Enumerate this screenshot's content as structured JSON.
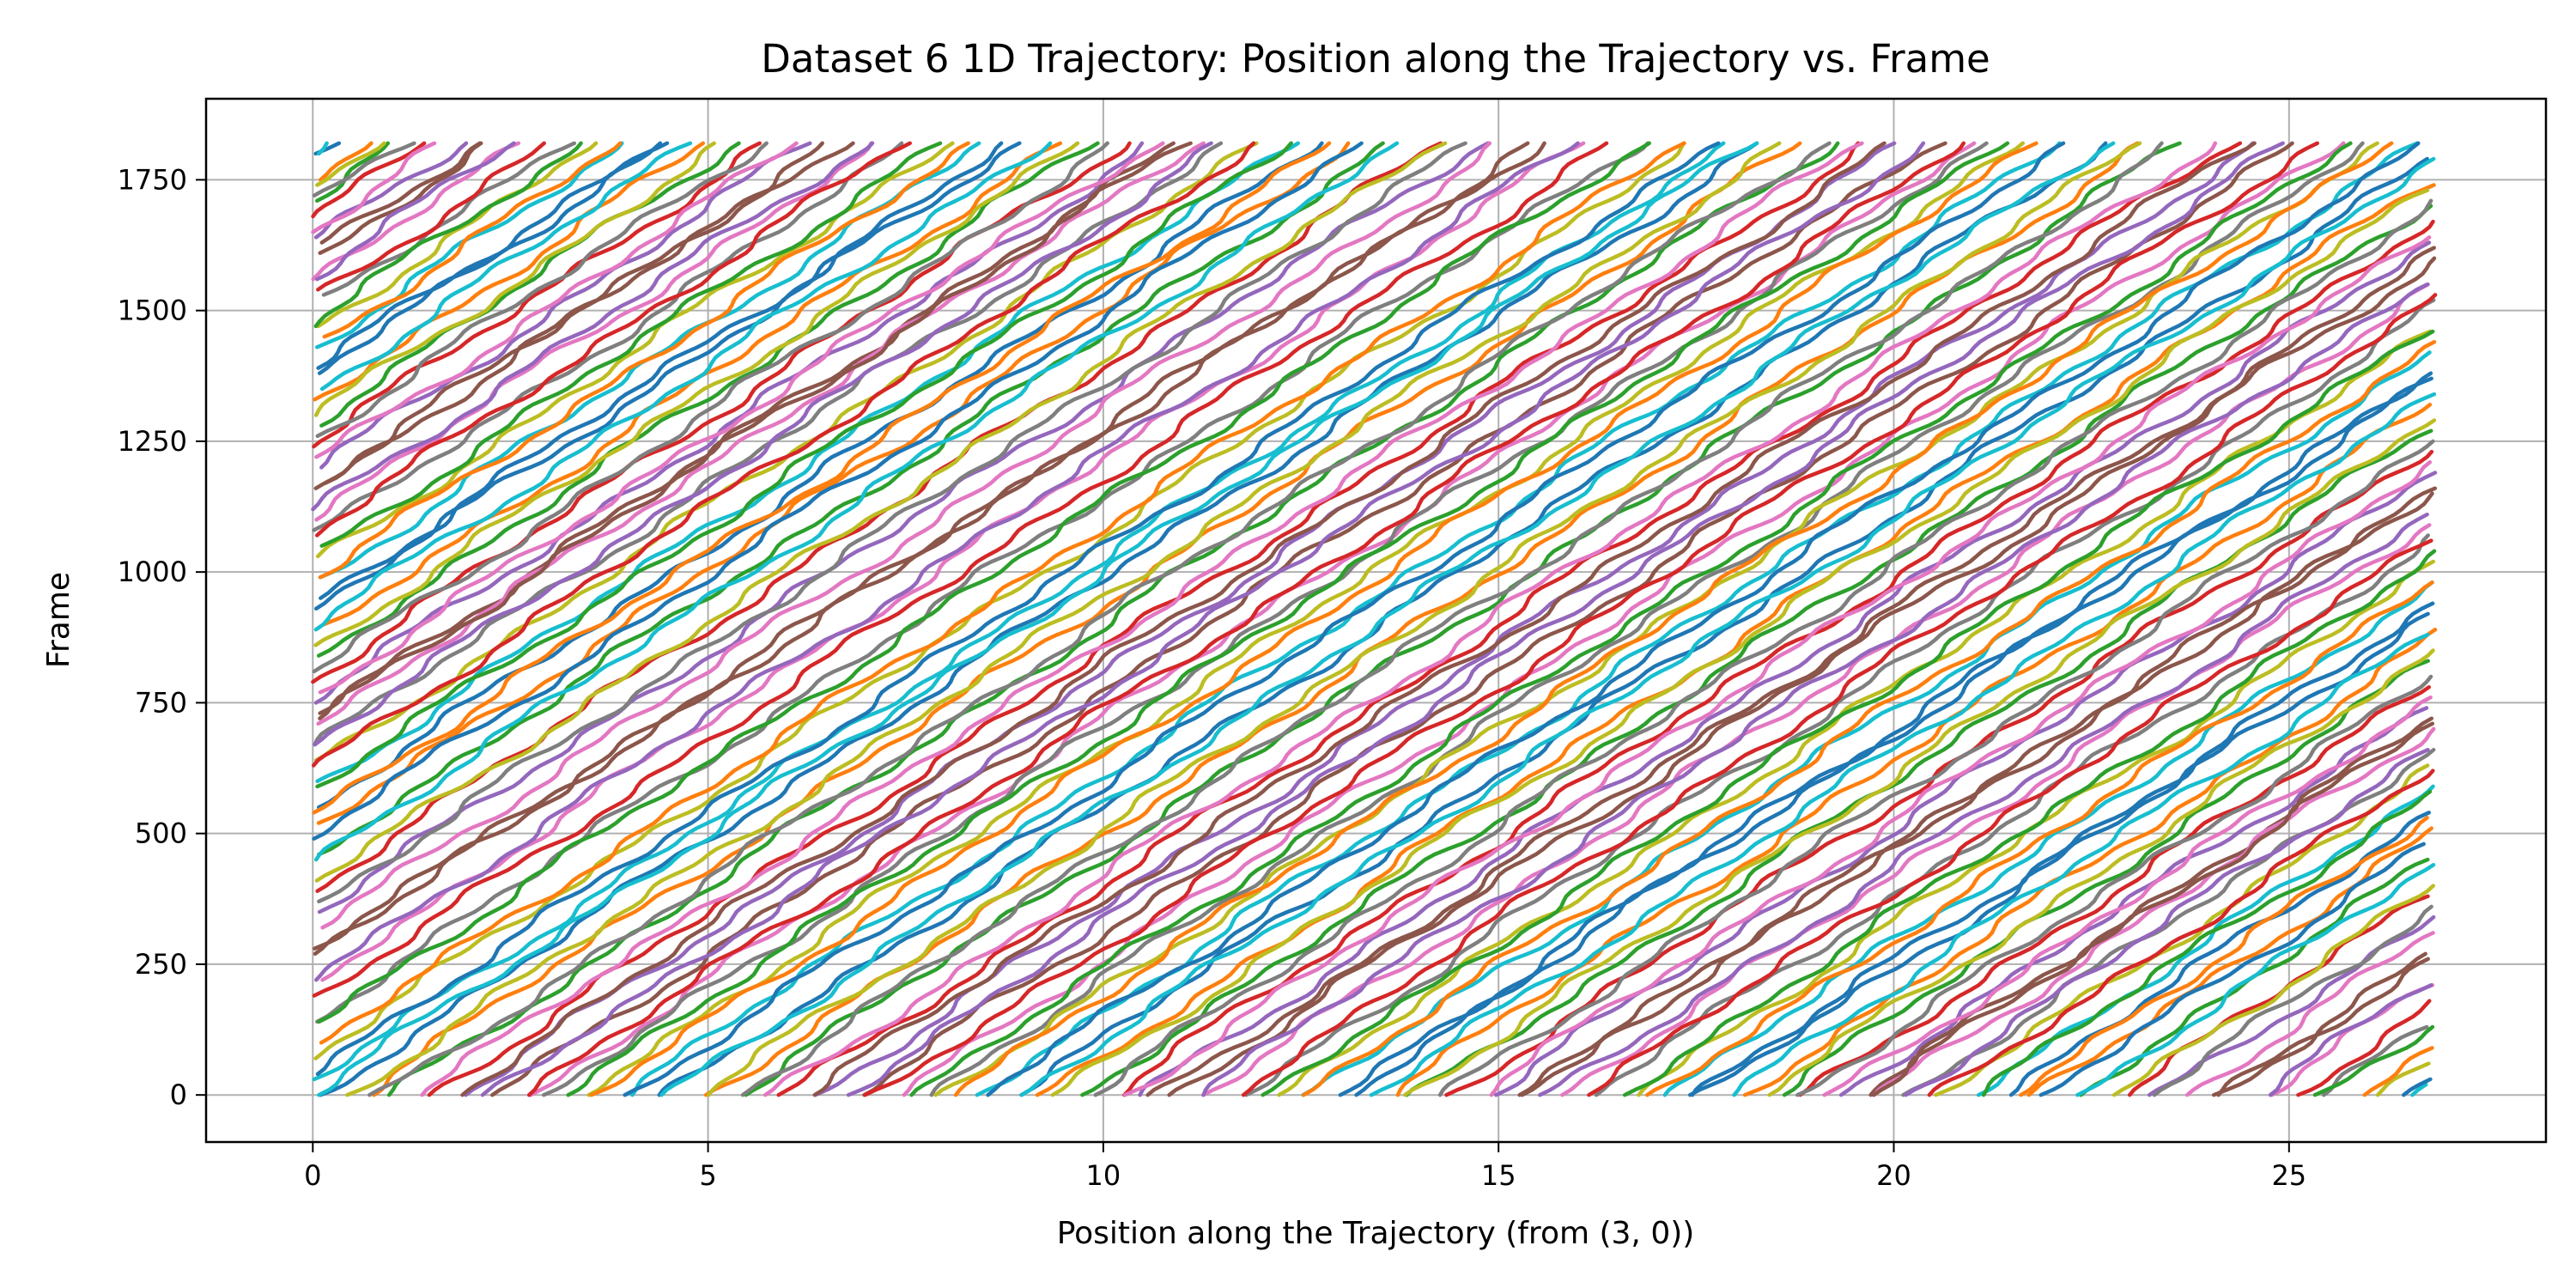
{
  "chart_data": {
    "type": "line",
    "title": "Dataset 6 1D Trajectory: Position along the Trajectory vs. Frame",
    "xlabel": "Position along the Trajectory (from (3, 0))",
    "ylabel": "Frame",
    "xlim": [
      -1.35,
      28.25
    ],
    "ylim": [
      -90,
      1905
    ],
    "xticks": [
      0,
      5,
      10,
      15,
      20,
      25
    ],
    "yticks": [
      0,
      250,
      500,
      750,
      1000,
      1250,
      1500,
      1750
    ],
    "xtick_labels": [
      "0",
      "5",
      "10",
      "15",
      "20",
      "25"
    ],
    "ytick_labels": [
      "0",
      "250",
      "500",
      "750",
      "1000",
      "1250",
      "1500",
      "1750"
    ],
    "grid": true,
    "legend": "none",
    "frame_range": [
      0,
      1820
    ],
    "track_length": 26.85,
    "slope_position_per_frame": 0.01,
    "track_count": 120,
    "start_positions": [
      0.1,
      0.6,
      1.0,
      1.5,
      1.9,
      2.3,
      2.8,
      3.0,
      3.4,
      3.9,
      4.5,
      5.0,
      5.4,
      6.0,
      6.4,
      6.9,
      7.4,
      7.8,
      8.0,
      8.4,
      8.9,
      9.3,
      9.7,
      10.1,
      10.5,
      10.9,
      11.3,
      11.8,
      12.2,
      12.6,
      13.1,
      13.6,
      14.0,
      14.4,
      14.9,
      15.3,
      15.8,
      16.2,
      16.7,
      17.1,
      17.6,
      18.1,
      18.5,
      18.9,
      19.3,
      19.6,
      19.8,
      20.2,
      20.6,
      21.0,
      21.4,
      21.8,
      22.3,
      22.9,
      23.4,
      24.1,
      24.7,
      25.4,
      26.1,
      26.6
    ],
    "colors": [
      "#1f77b4",
      "#ff7f0e",
      "#2ca02c",
      "#d62728",
      "#9467bd",
      "#8c564b",
      "#e377c2",
      "#7f7f7f",
      "#bcbd22",
      "#17becf"
    ]
  }
}
